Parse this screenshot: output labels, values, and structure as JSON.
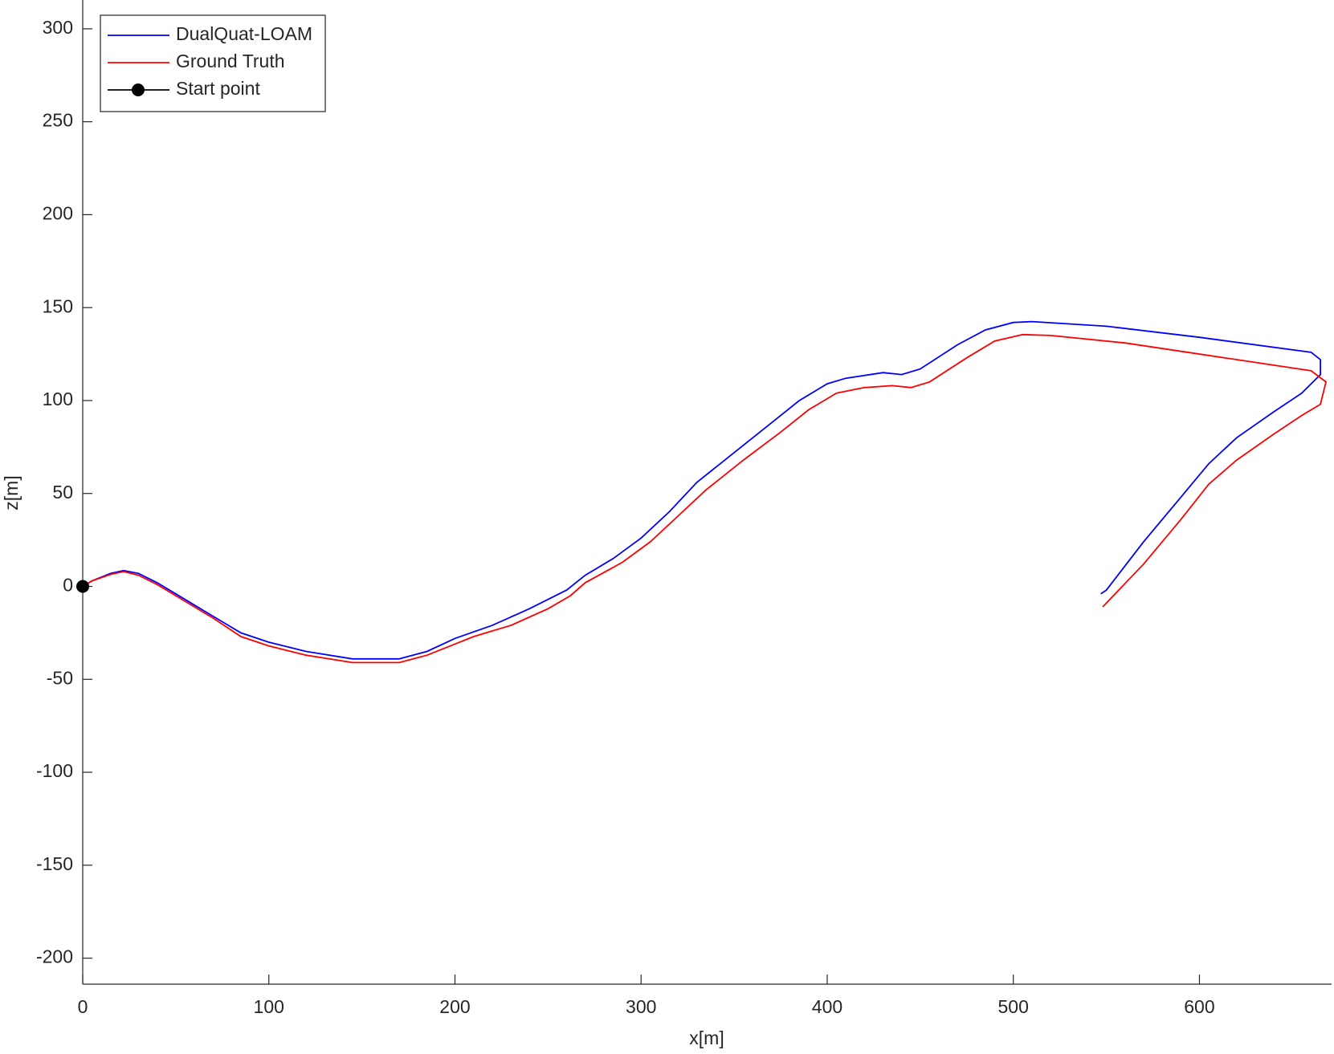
{
  "chart_data": {
    "type": "line",
    "xlabel": "x[m]",
    "ylabel": "z[m]",
    "xlim": [
      0,
      671
    ],
    "ylim": [
      -214,
      315.5
    ],
    "xticks": [
      0,
      100,
      200,
      300,
      400,
      500,
      600
    ],
    "yticks": [
      -200,
      -150,
      -100,
      -50,
      0,
      50,
      100,
      150,
      200,
      250,
      300
    ],
    "legend": "upper-left",
    "series": [
      {
        "name": "DualQuat-LOAM",
        "color": "#0000ff",
        "x": [
          0,
          5,
          15,
          22,
          30,
          40,
          50,
          60,
          70,
          85,
          100,
          120,
          145,
          170,
          185,
          200,
          220,
          240,
          260,
          270,
          285,
          300,
          315,
          330,
          350,
          370,
          385,
          400,
          410,
          430,
          440,
          450,
          470,
          485,
          500,
          510,
          550,
          600,
          660,
          665,
          665,
          655,
          640,
          620,
          605,
          590,
          570,
          550,
          547
        ],
        "values": [
          0,
          3,
          7,
          8.5,
          7,
          2,
          -4,
          -10,
          -16,
          -25,
          -30,
          -35,
          -39,
          -39,
          -35,
          -28,
          -21,
          -12,
          -2,
          6,
          15,
          26,
          40,
          56,
          72,
          88,
          100,
          109,
          112,
          115,
          114,
          117,
          130,
          138,
          142,
          142.5,
          140,
          134,
          126,
          122,
          114,
          104,
          94,
          80,
          66,
          48,
          24,
          -2,
          -4
        ]
      },
      {
        "name": "Ground Truth",
        "color": "#ff0000",
        "x": [
          0,
          5,
          15,
          22,
          30,
          40,
          50,
          60,
          70,
          85,
          100,
          120,
          145,
          170,
          185,
          200,
          210,
          230,
          250,
          262,
          270,
          290,
          305,
          320,
          335,
          355,
          375,
          390,
          405,
          420,
          435,
          445,
          455,
          475,
          490,
          505,
          520,
          560,
          620,
          660,
          668,
          665,
          655,
          640,
          620,
          605,
          590,
          570,
          548
        ],
        "values": [
          0,
          3,
          6.5,
          8,
          6,
          1,
          -5,
          -11,
          -17,
          -27,
          -32,
          -37,
          -41,
          -41,
          -37,
          -31,
          -27,
          -21,
          -12,
          -5,
          2,
          13,
          24,
          38,
          52,
          68,
          83,
          95,
          104,
          107,
          108,
          107,
          110,
          123,
          132,
          135.5,
          135,
          131,
          122,
          116,
          110,
          98,
          92,
          82,
          68,
          55,
          36,
          12,
          -11
        ]
      },
      {
        "name": "Start point",
        "color": "#000000",
        "marker": "circle",
        "x": [
          0
        ],
        "values": [
          0
        ]
      }
    ]
  }
}
